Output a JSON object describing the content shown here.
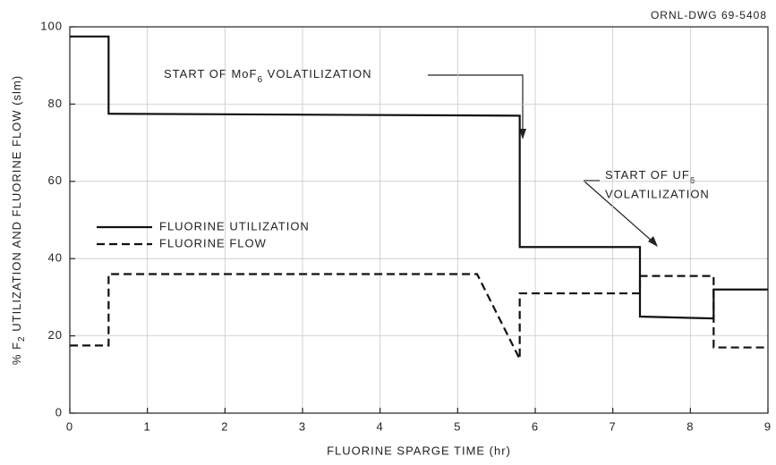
{
  "chart_data": {
    "type": "line",
    "drawing_id": "ORNL-DWG 69-5408",
    "x_label": "FLUORINE SPARGE TIME (hr)",
    "y_label": {
      "pre": "% F",
      "sub": "2",
      "post": " UTILIZATION AND FLUORINE FLOW (slm)"
    },
    "annotations": [
      {
        "pre": "START OF MoF",
        "sub": "6",
        "post": " VOLATILIZATION"
      },
      {
        "pre": "START OF UF",
        "sub": "6",
        "post": "VOLATILIZATION"
      }
    ],
    "xlim": [
      0,
      9
    ],
    "xticks": [
      0,
      1,
      2,
      3,
      4,
      5,
      6,
      7,
      8,
      9
    ],
    "ylim": [
      0,
      100
    ],
    "yticks": [
      0,
      20,
      40,
      60,
      80,
      100
    ],
    "grid": true,
    "legend": "center left",
    "series": [
      {
        "name": "FLUORINE UTILIZATION",
        "color": "#111111",
        "linestyle": "solid",
        "x": [
          0,
          0.5,
          0.5,
          5.8,
          5.8,
          7.35,
          7.35,
          8.3,
          8.3,
          9
        ],
        "values": [
          97.5,
          97.5,
          77.5,
          77,
          43,
          43,
          25,
          24.5,
          32,
          32
        ]
      },
      {
        "name": "FLUORINE FLOW",
        "color": "#111111",
        "linestyle": "dashed",
        "x": [
          0,
          0.5,
          0.5,
          5.25,
          5.8,
          5.8,
          7.35,
          7.35,
          8.3,
          8.3,
          9
        ],
        "values": [
          17.5,
          17.5,
          36,
          36,
          14,
          31,
          31,
          35.5,
          35.5,
          17,
          17
        ]
      }
    ]
  }
}
